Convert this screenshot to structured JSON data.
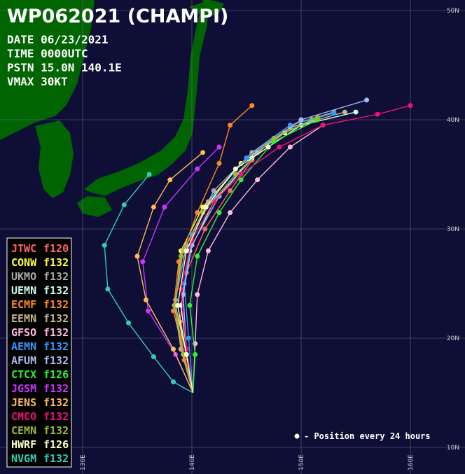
{
  "header": {
    "title": "WP062021 (CHAMPI)",
    "lines": [
      "DATE 06/23/2021",
      "TIME 0000UTC",
      "PSTN 15.0N 140.1E",
      "VMAX 30KT"
    ]
  },
  "map": {
    "lon_ticks": [
      {
        "value": 130,
        "label": "130E"
      },
      {
        "value": 140,
        "label": "140E"
      },
      {
        "value": 150,
        "label": "150E"
      },
      {
        "value": 160,
        "label": "160E"
      }
    ],
    "lat_ticks": [
      {
        "value": 10,
        "label": "10N"
      },
      {
        "value": 20,
        "label": "20N"
      },
      {
        "value": 30,
        "label": "30N"
      },
      {
        "value": 40,
        "label": "40N"
      },
      {
        "value": 50,
        "label": "50N"
      }
    ],
    "note": "- Position every 24 hours",
    "tracks": [
      {
        "name": "JTWC",
        "tau": "f120",
        "color": "#ff6666",
        "points": [
          [
            140.1,
            15
          ],
          [
            139.3,
            18
          ],
          [
            138.9,
            21.5
          ],
          [
            139.5,
            26
          ],
          [
            141.2,
            30
          ],
          [
            143.5,
            33.5
          ],
          [
            145.5,
            36.3
          ]
        ]
      },
      {
        "name": "CONW",
        "tau": "f132",
        "color": "#ffff44",
        "points": [
          [
            140.1,
            15
          ],
          [
            139.5,
            18.5
          ],
          [
            138.5,
            23
          ],
          [
            139,
            28
          ],
          [
            141,
            32
          ],
          [
            144.5,
            36
          ],
          [
            148.5,
            38.8
          ],
          [
            151,
            40
          ]
        ]
      },
      {
        "name": "UKMO",
        "tau": "f132",
        "color": "#aaaaaa",
        "points": [
          [
            140.1,
            15
          ],
          [
            139,
            19
          ],
          [
            138.5,
            23.5
          ],
          [
            139.5,
            28.5
          ],
          [
            142,
            33.5
          ],
          [
            145.5,
            37
          ],
          [
            149,
            39.5
          ],
          [
            153,
            40.7
          ]
        ]
      },
      {
        "name": "UEMN",
        "tau": "f132",
        "color": "#ccffee",
        "points": [
          [
            140.1,
            15
          ],
          [
            139.5,
            19
          ],
          [
            139,
            23
          ],
          [
            139.8,
            28
          ],
          [
            142,
            32.5
          ],
          [
            145.5,
            36.5
          ],
          [
            150,
            39.5
          ],
          [
            155,
            40.7
          ]
        ]
      },
      {
        "name": "ECMF",
        "tau": "f132",
        "color": "#ff8822",
        "points": [
          [
            140.1,
            15
          ],
          [
            139.3,
            18.5
          ],
          [
            138.3,
            22.5
          ],
          [
            138.8,
            27
          ],
          [
            140.5,
            31.5
          ],
          [
            142.5,
            36
          ],
          [
            143.5,
            39.5
          ],
          [
            145.5,
            41.3
          ]
        ]
      },
      {
        "name": "EEMN",
        "tau": "f132",
        "color": "#c8b48a",
        "points": [
          [
            140.1,
            15
          ],
          [
            139,
            19
          ],
          [
            138.4,
            23
          ],
          [
            139.2,
            28
          ],
          [
            141.5,
            32.5
          ],
          [
            145,
            36.5
          ],
          [
            149,
            39.3
          ],
          [
            154,
            40.7
          ]
        ]
      },
      {
        "name": "GFSO",
        "tau": "f132",
        "color": "#ffbbdd",
        "points": [
          [
            140.1,
            15
          ],
          [
            140.3,
            19.5
          ],
          [
            140.5,
            24
          ],
          [
            141.5,
            28
          ],
          [
            143.5,
            31.5
          ],
          [
            146,
            34.5
          ],
          [
            149,
            37.5
          ],
          [
            152,
            39.5
          ]
        ]
      },
      {
        "name": "AEMN",
        "tau": "f132",
        "color": "#3399ff",
        "points": [
          [
            140.1,
            15
          ],
          [
            139.7,
            20
          ],
          [
            139.3,
            25
          ],
          [
            140,
            29.5
          ],
          [
            142,
            33
          ],
          [
            145,
            36.5
          ],
          [
            149,
            39.5
          ],
          [
            153,
            40.6
          ]
        ]
      },
      {
        "name": "AFUM",
        "tau": "f132",
        "color": "#aabbee",
        "points": [
          [
            140.1,
            15
          ],
          [
            139.5,
            19
          ],
          [
            139.2,
            24
          ],
          [
            140,
            28.5
          ],
          [
            142.5,
            33
          ],
          [
            146,
            37
          ],
          [
            150,
            40
          ],
          [
            156,
            41.8
          ]
        ]
      },
      {
        "name": "CTCX",
        "tau": "f126",
        "color": "#33ee33",
        "points": [
          [
            140.1,
            15
          ],
          [
            140.3,
            18.5
          ],
          [
            139.8,
            23
          ],
          [
            140.5,
            27.5
          ],
          [
            142.5,
            31.5
          ],
          [
            144.5,
            34.5
          ],
          [
            147.5,
            38
          ],
          [
            151.5,
            40
          ]
        ]
      },
      {
        "name": "JGSM",
        "tau": "f132",
        "color": "#cc33ff",
        "points": [
          [
            140.1,
            15
          ],
          [
            138.5,
            18.5
          ],
          [
            136,
            22.5
          ],
          [
            135.5,
            27
          ],
          [
            137.5,
            32
          ],
          [
            140.5,
            35.5
          ],
          [
            142.5,
            37.5
          ]
        ]
      },
      {
        "name": "JENS",
        "tau": "f132",
        "color": "#ffbb55",
        "points": [
          [
            140.1,
            15
          ],
          [
            138.3,
            19
          ],
          [
            135.8,
            23.5
          ],
          [
            135,
            27.5
          ],
          [
            136.5,
            32
          ],
          [
            138,
            34.5
          ],
          [
            141,
            37
          ]
        ]
      },
      {
        "name": "CMCO",
        "tau": "f132",
        "color": "#ee1177",
        "points": [
          [
            140.1,
            15
          ],
          [
            139.5,
            19
          ],
          [
            139,
            24.5
          ],
          [
            140,
            29
          ],
          [
            142,
            32.5
          ],
          [
            144.5,
            35
          ],
          [
            148,
            37.5
          ],
          [
            152,
            39.5
          ],
          [
            157,
            40.5
          ],
          [
            160,
            41.3
          ]
        ]
      },
      {
        "name": "CEMN",
        "tau": "f132",
        "color": "#99bb33",
        "points": [
          [
            140.1,
            15
          ],
          [
            139.2,
            18.5
          ],
          [
            138.5,
            23
          ],
          [
            139,
            27.5
          ],
          [
            141,
            31.5
          ],
          [
            144,
            35
          ],
          [
            147.5,
            38.3
          ],
          [
            151.5,
            40.2
          ]
        ]
      },
      {
        "name": "HWRF",
        "tau": "f126",
        "color": "#ffffcc",
        "points": [
          [
            140.1,
            15
          ],
          [
            139.5,
            18.5
          ],
          [
            138.7,
            23
          ],
          [
            139.5,
            28
          ],
          [
            141.3,
            32
          ],
          [
            144,
            35.5
          ],
          [
            147,
            37.5
          ]
        ]
      },
      {
        "name": "NVGM",
        "tau": "f132",
        "color": "#33ccbb",
        "points": [
          [
            140.1,
            15
          ],
          [
            138.3,
            16
          ],
          [
            136.5,
            18.3
          ],
          [
            134.2,
            21.4
          ],
          [
            132.3,
            24.5
          ],
          [
            132,
            28.5
          ],
          [
            133.8,
            32.2
          ],
          [
            136.1,
            35
          ]
        ]
      }
    ]
  }
}
